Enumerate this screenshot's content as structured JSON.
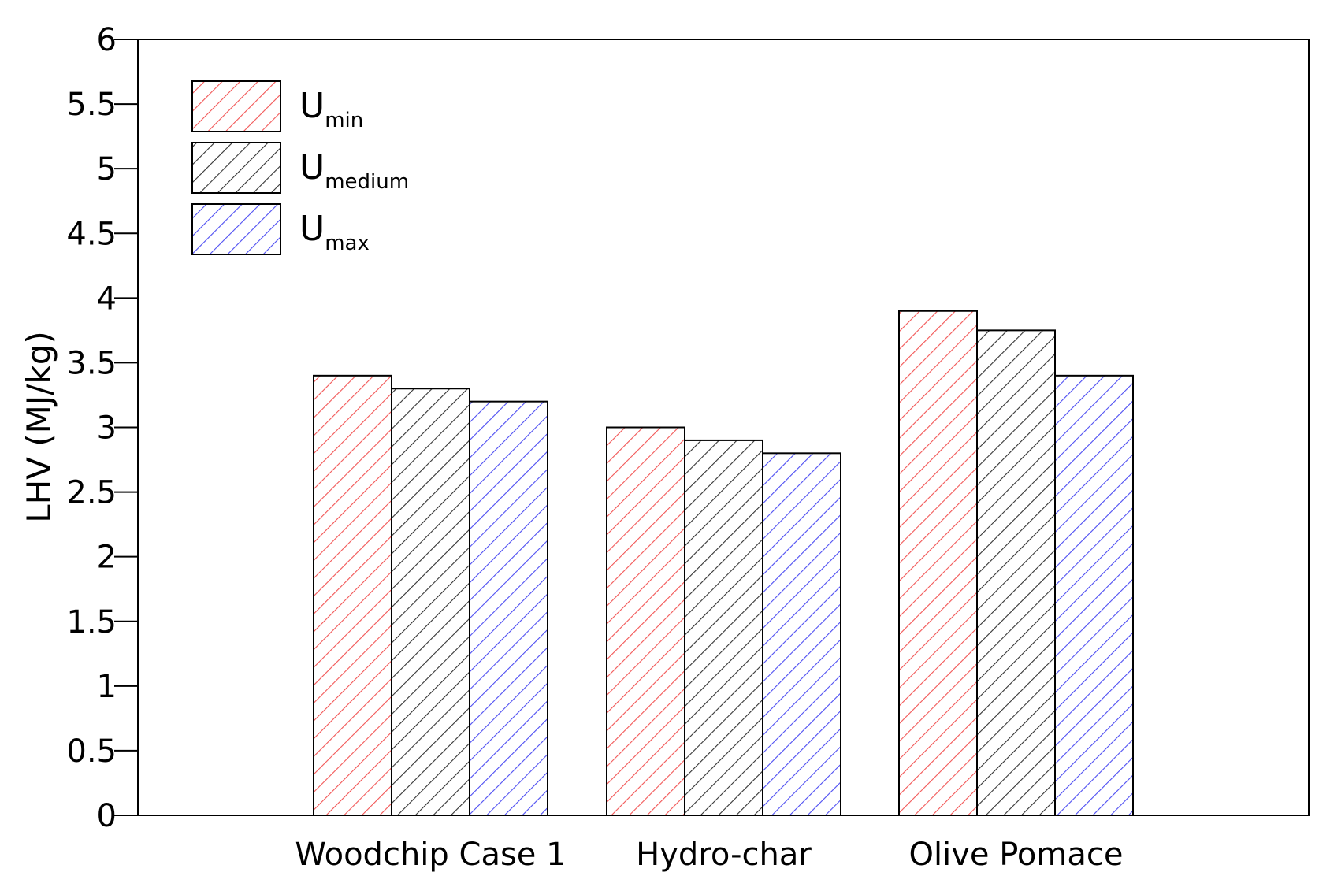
{
  "chart_data": {
    "type": "bar",
    "categories": [
      "Woodchip Case 1",
      "Hydro-char",
      "Olive Pomace"
    ],
    "series": [
      {
        "name": "U",
        "name_sub": "min",
        "color": "#f25555",
        "values": [
          3.4,
          3.0,
          3.9
        ]
      },
      {
        "name": "U",
        "name_sub": "medium",
        "color": "#333333",
        "values": [
          3.3,
          2.9,
          3.75
        ]
      },
      {
        "name": "U",
        "name_sub": "max",
        "color": "#4d4df2",
        "values": [
          3.2,
          2.8,
          3.4
        ]
      }
    ],
    "ylabel": "LHV (MJ/kg)",
    "xlabel": "",
    "ylim": [
      0,
      6
    ],
    "yticks": [
      "0",
      "0.5",
      "1",
      "1.5",
      "2",
      "2.5",
      "3",
      "3.5",
      "4",
      "4.5",
      "5",
      "5.5",
      "6"
    ],
    "fill_pattern": "diagonal-hatch",
    "grid": false,
    "legend_position": "top-left"
  }
}
